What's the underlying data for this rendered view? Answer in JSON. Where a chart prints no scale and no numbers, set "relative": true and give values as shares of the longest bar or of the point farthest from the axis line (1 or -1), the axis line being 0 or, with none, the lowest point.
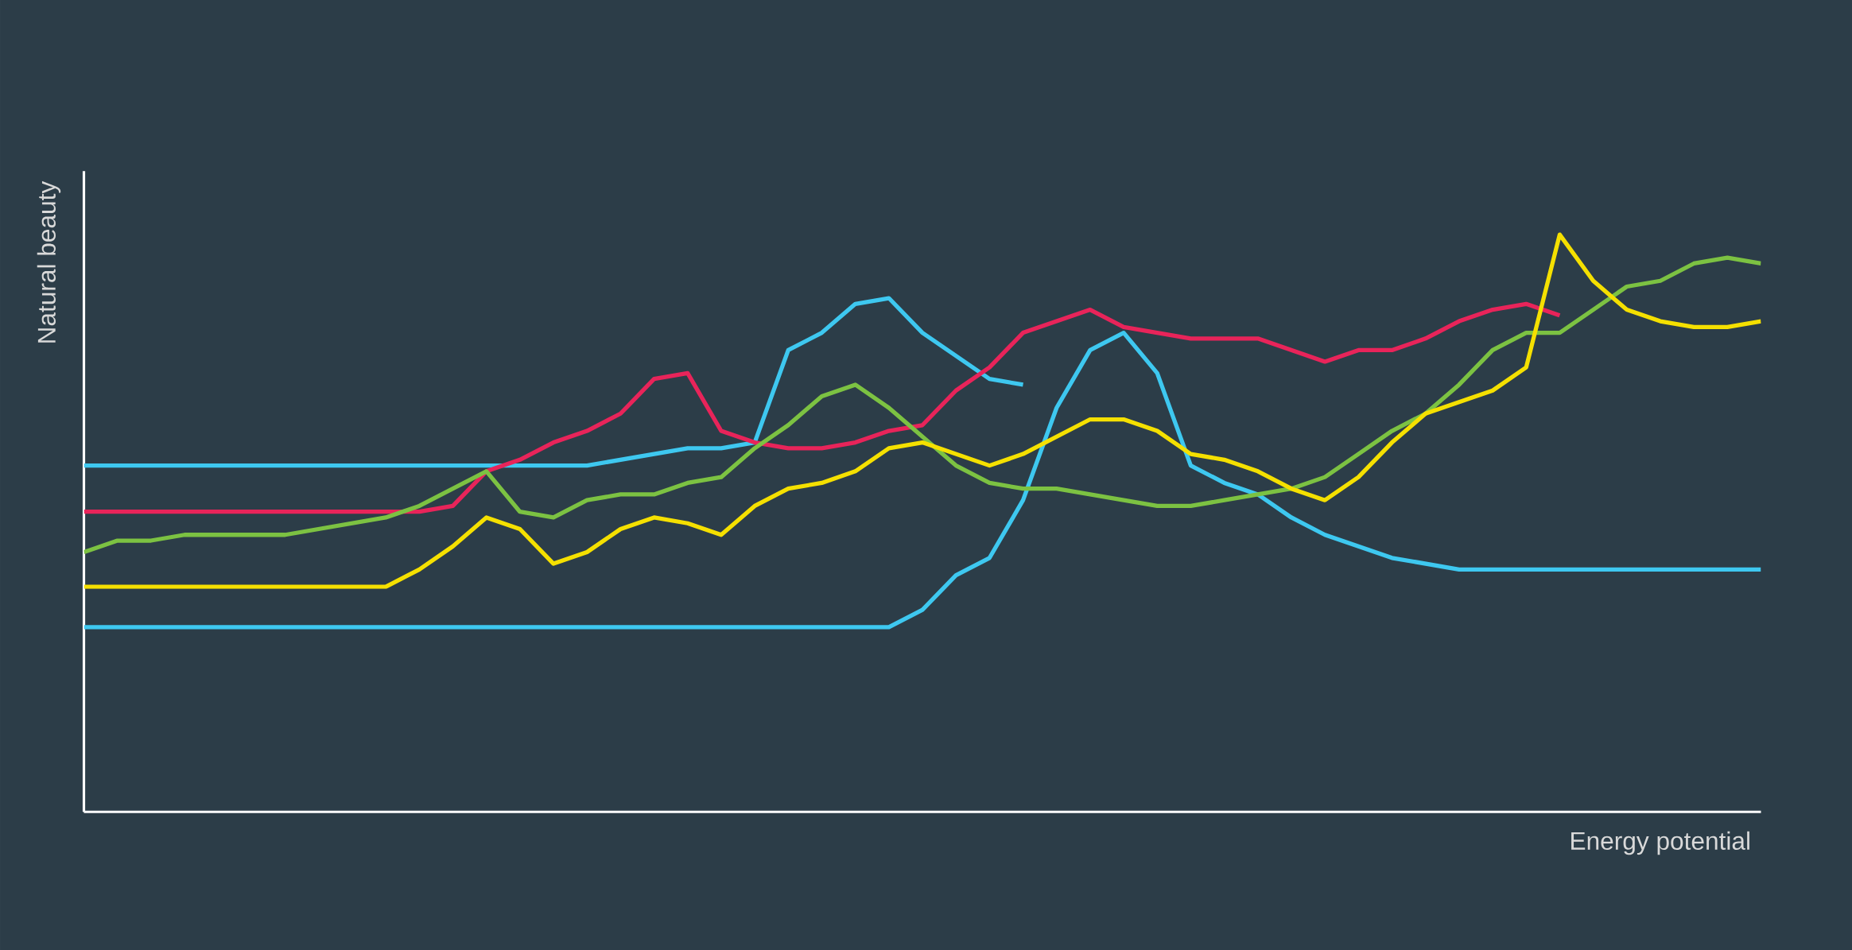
{
  "chart_data": {
    "type": "line",
    "relative": true,
    "xlabel": "Energy potential",
    "ylabel": "Natural beauty",
    "marker": "none",
    "categories": [
      null,
      null,
      null,
      null,
      null,
      null,
      null,
      null,
      null,
      null,
      null,
      null,
      null,
      null,
      null,
      null,
      null,
      null,
      null,
      null,
      null,
      null,
      null,
      null,
      null,
      null,
      null,
      null,
      null,
      null,
      null,
      null,
      null,
      null,
      null,
      null,
      null,
      null,
      null,
      null,
      null,
      null,
      null,
      null,
      null,
      null,
      null,
      null,
      null,
      null,
      null
    ],
    "series": [
      {
        "color": "#3ec8f0",
        "values": [
          0.6,
          0.6,
          0.6,
          0.6,
          0.6,
          0.6,
          0.6,
          0.6,
          0.6,
          0.6,
          0.6,
          0.6,
          0.6,
          0.6,
          0.6,
          0.6,
          0.61,
          0.62,
          0.63,
          0.63,
          0.64,
          0.8,
          0.83,
          0.88,
          0.89,
          0.83,
          0.79,
          0.75,
          0.74,
          null,
          null,
          null,
          null,
          null,
          null,
          null,
          null,
          null,
          null,
          null,
          null,
          null,
          null,
          null,
          null,
          null,
          null,
          null,
          null,
          null,
          null
        ]
      },
      {
        "color": "#3ec8f0",
        "values": [
          0.32,
          0.32,
          0.32,
          0.32,
          0.32,
          0.32,
          0.32,
          0.32,
          0.32,
          0.32,
          0.32,
          0.32,
          0.32,
          0.32,
          0.32,
          0.32,
          0.32,
          0.32,
          0.32,
          0.32,
          0.32,
          0.32,
          0.32,
          0.32,
          0.32,
          0.35,
          0.41,
          0.44,
          0.54,
          0.7,
          0.8,
          0.83,
          0.76,
          0.6,
          0.57,
          0.55,
          0.51,
          0.48,
          0.46,
          0.44,
          0.43,
          0.42,
          0.42,
          0.42,
          0.42,
          0.42,
          0.42,
          0.42,
          0.42,
          0.42,
          0.42
        ]
      },
      {
        "color": "#e8245a",
        "values": [
          0.52,
          0.52,
          0.52,
          0.52,
          0.52,
          0.52,
          0.52,
          0.52,
          0.52,
          0.52,
          0.52,
          0.53,
          0.59,
          0.61,
          0.64,
          0.66,
          0.69,
          0.75,
          0.76,
          0.66,
          0.64,
          0.63,
          0.63,
          0.64,
          0.66,
          0.67,
          0.73,
          0.77,
          0.83,
          0.85,
          0.87,
          0.84,
          0.83,
          0.82,
          0.82,
          0.82,
          0.8,
          0.78,
          0.8,
          0.8,
          0.82,
          0.85,
          0.87,
          0.88,
          0.86,
          null,
          null,
          null,
          null,
          null,
          null
        ]
      },
      {
        "color": "#7cc242",
        "values": [
          0.45,
          0.47,
          0.47,
          0.48,
          0.48,
          0.48,
          0.48,
          0.49,
          0.5,
          0.51,
          0.53,
          0.56,
          0.59,
          0.52,
          0.51,
          0.54,
          0.55,
          0.55,
          0.57,
          0.58,
          0.63,
          0.67,
          0.72,
          0.74,
          0.7,
          0.65,
          0.6,
          0.57,
          0.56,
          0.56,
          0.55,
          0.54,
          0.53,
          0.53,
          0.54,
          0.55,
          0.56,
          0.58,
          0.62,
          0.66,
          0.69,
          0.74,
          0.8,
          0.83,
          0.83,
          0.87,
          0.91,
          0.92,
          0.95,
          0.96,
          0.95
        ]
      },
      {
        "color": "#f5e000",
        "values": [
          0.39,
          0.39,
          0.39,
          0.39,
          0.39,
          0.39,
          0.39,
          0.39,
          0.39,
          0.39,
          0.42,
          0.46,
          0.51,
          0.49,
          0.43,
          0.45,
          0.49,
          0.51,
          0.5,
          0.48,
          0.53,
          0.56,
          0.57,
          0.59,
          0.63,
          0.64,
          0.62,
          0.6,
          0.62,
          0.65,
          0.68,
          0.68,
          0.66,
          0.62,
          0.61,
          0.59,
          0.56,
          0.54,
          0.58,
          0.64,
          0.69,
          0.71,
          0.73,
          0.77,
          1,
          0.92,
          0.87,
          0.85,
          0.84,
          0.84,
          0.85
        ]
      }
    ]
  }
}
